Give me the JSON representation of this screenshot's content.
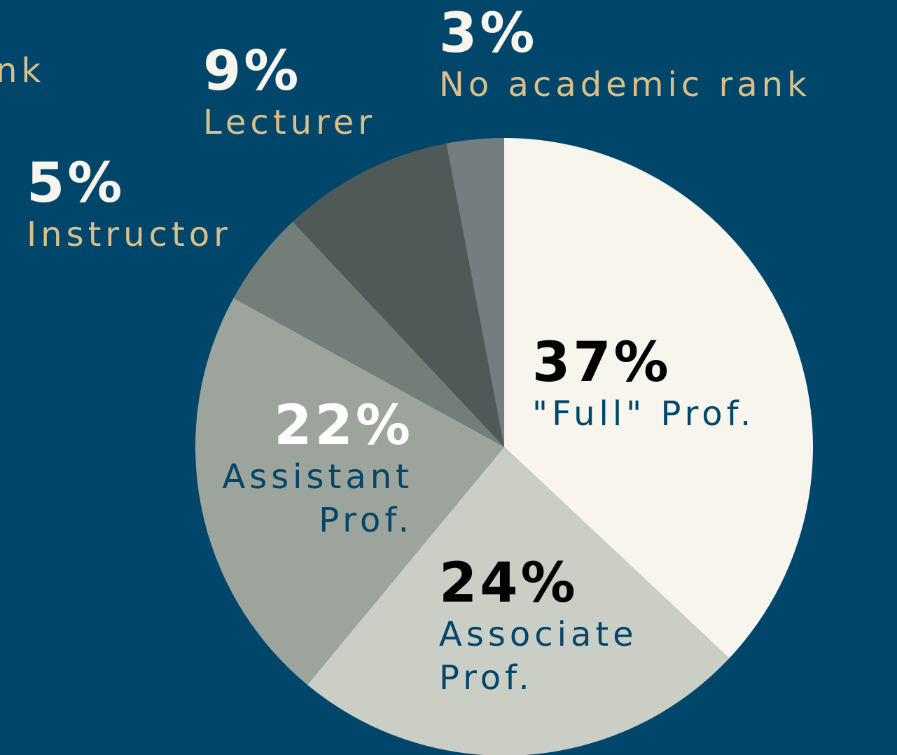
{
  "chart_data": {
    "type": "pie",
    "categories": [
      "\"Full\" Prof.",
      "Associate Prof.",
      "Assistant Prof.",
      "Instructor",
      "Lecturer",
      "No academic rank"
    ],
    "values": [
      37,
      24,
      22,
      5,
      9,
      3
    ],
    "value_labels": [
      "37%",
      "24%",
      "22%",
      "5%",
      "9%",
      "3%"
    ],
    "colors": [
      "#f7f5ec",
      "#cbcec4",
      "#9ca49b",
      "#737e78",
      "#4f5a58",
      "#747d80"
    ],
    "annotations": [
      "nk"
    ]
  }
}
